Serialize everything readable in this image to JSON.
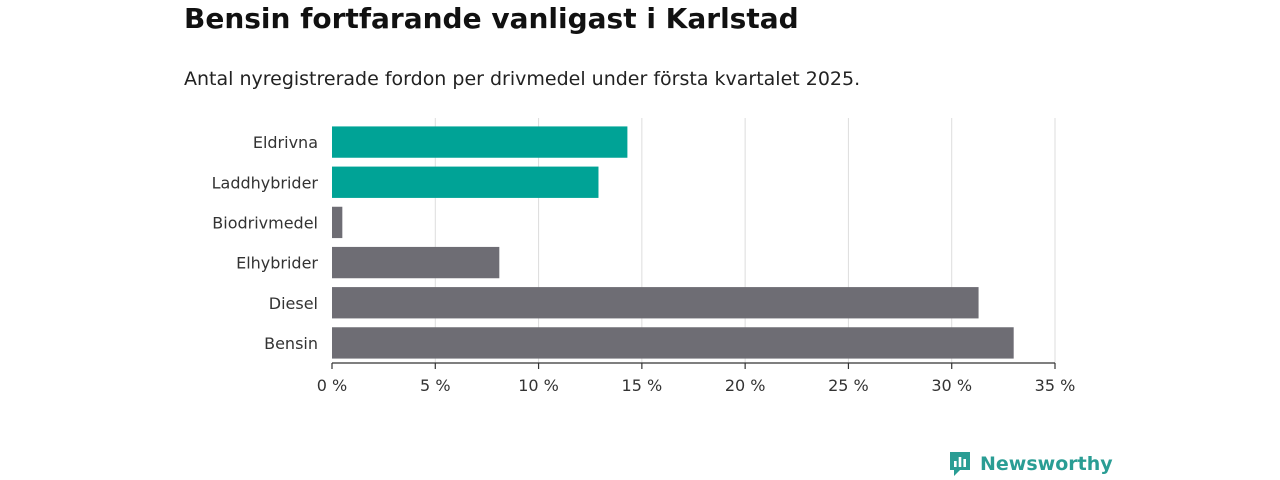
{
  "header": {
    "title": "Bensin fortfarande vanligast i Karlstad",
    "subtitle": "Antal nyregistrerade fordon per drivmedel under första kvartalet 2025."
  },
  "brand": {
    "name": "Newsworthy",
    "icon": "newsworthy-logo-icon",
    "color": "#2a9d94"
  },
  "colors": {
    "highlight": "#00a396",
    "default": "#6e6d74"
  },
  "chart_data": {
    "type": "bar",
    "orientation": "horizontal",
    "title": "Bensin fortfarande vanligast i Karlstad",
    "subtitle": "Antal nyregistrerade fordon per drivmedel under första kvartalet 2025.",
    "xlabel": "",
    "ylabel": "",
    "categories": [
      "Eldrivna",
      "Laddhybrider",
      "Biodrivmedel",
      "Elhybrider",
      "Diesel",
      "Bensin"
    ],
    "values": [
      14.3,
      12.9,
      0.5,
      8.1,
      31.3,
      33.0
    ],
    "highlight": [
      true,
      true,
      false,
      false,
      false,
      false
    ],
    "xlim": [
      0,
      35
    ],
    "ticks": [
      0,
      5,
      10,
      15,
      20,
      25,
      30,
      35
    ],
    "tick_labels": [
      "0 %",
      "5 %",
      "10 %",
      "15 %",
      "20 %",
      "25 %",
      "30 %",
      "35 %"
    ],
    "unit": "%",
    "grid": true
  }
}
